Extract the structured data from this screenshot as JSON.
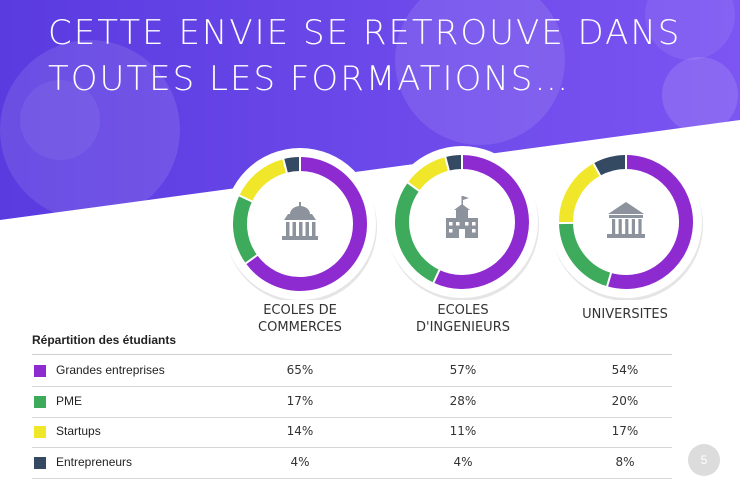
{
  "slide": {
    "title_line1": "CETTE ENVIE SE RETROUVE DANS",
    "title_line2": "TOUTES LES FORMATIONS…",
    "page_number": "5"
  },
  "colors": {
    "banner_start": "#5b3fe0",
    "banner_end": "#7a4cf0",
    "grandes_entreprises": "#8e2bd0",
    "pme": "#3daa5c",
    "startups": "#f0e62a",
    "entrepreneurs": "#344a63",
    "icon": "#8d939c"
  },
  "chart_data": {
    "type": "table",
    "row_header": "Répartition des étudiants",
    "columns": [
      {
        "label": "ECOLES DE COMMERCES",
        "line1": "ECOLES DE",
        "line2": "COMMERCES",
        "icon": "bank-building-icon"
      },
      {
        "label": "ECOLES D'INGENIEURS",
        "line1": "ECOLES",
        "line2": "D'INGENIEURS",
        "icon": "school-building-icon"
      },
      {
        "label": "UNIVERSITES",
        "line1": "UNIVERSITES",
        "line2": "",
        "icon": "columns-building-icon"
      }
    ],
    "series": [
      {
        "name": "Grandes entreprises",
        "color": "#8e2bd0",
        "values": [
          65,
          57,
          54
        ],
        "labels": [
          "65%",
          "57%",
          "54%"
        ]
      },
      {
        "name": "PME",
        "color": "#3daa5c",
        "values": [
          17,
          28,
          20
        ],
        "labels": [
          "17%",
          "28%",
          "20%"
        ]
      },
      {
        "name": "Startups",
        "color": "#f0e62a",
        "values": [
          14,
          11,
          17
        ],
        "labels": [
          "14%",
          "11%",
          "17%"
        ]
      },
      {
        "name": "Entrepreneurs",
        "color": "#344a63",
        "values": [
          4,
          4,
          8
        ],
        "labels": [
          "4%",
          "4%",
          "8%"
        ]
      }
    ],
    "donut_type": "pie"
  }
}
